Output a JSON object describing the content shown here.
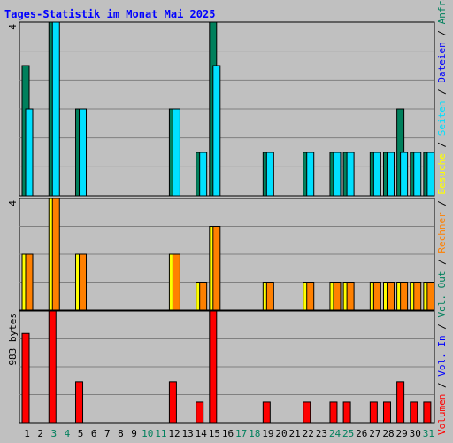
{
  "chart_data": {
    "type": "bar",
    "title": "Tages-Statistik im Monat Mai 2025",
    "categories": [
      "1",
      "2",
      "3",
      "4",
      "5",
      "6",
      "7",
      "8",
      "9",
      "10",
      "11",
      "12",
      "13",
      "14",
      "15",
      "16",
      "17",
      "18",
      "19",
      "20",
      "21",
      "22",
      "23",
      "24",
      "25",
      "26",
      "27",
      "28",
      "29",
      "30",
      "31"
    ],
    "weekend_days": [
      "3",
      "4",
      "10",
      "11",
      "17",
      "18",
      "24",
      "25",
      "31"
    ],
    "grid": true,
    "panels": [
      {
        "id": "top",
        "ymax_label": "4",
        "ylim": [
          0,
          4
        ],
        "series": [
          {
            "name": "Anfragen",
            "color": "#00805c",
            "values": [
              3,
              0,
              4,
              0,
              2,
              0,
              0,
              0,
              0,
              0,
              0,
              2,
              0,
              1,
              4,
              0,
              0,
              0,
              1,
              0,
              0,
              1,
              0,
              1,
              1,
              0,
              1,
              1,
              2,
              1,
              1
            ]
          },
          {
            "name": "Dateien",
            "color": "#0000ff",
            "values": [
              null,
              null,
              null,
              null,
              null,
              null,
              null,
              null,
              null,
              null,
              null,
              null,
              null,
              null,
              null,
              null,
              null,
              null,
              null,
              null,
              null,
              null,
              null,
              null,
              null,
              null,
              null,
              null,
              null,
              null,
              null
            ]
          },
          {
            "name": "Seiten",
            "color": "#00e0ff",
            "values": [
              2,
              0,
              4,
              0,
              2,
              0,
              0,
              0,
              0,
              0,
              0,
              2,
              0,
              1,
              3,
              0,
              0,
              0,
              1,
              0,
              0,
              1,
              0,
              1,
              1,
              0,
              1,
              1,
              1,
              1,
              1
            ]
          }
        ]
      },
      {
        "id": "middle",
        "ymax_label": "4",
        "ylim": [
          0,
          4
        ],
        "series": [
          {
            "name": "Besuche",
            "color": "#ffff00",
            "values": [
              2,
              0,
              4,
              0,
              2,
              0,
              0,
              0,
              0,
              0,
              0,
              2,
              0,
              1,
              3,
              0,
              0,
              0,
              1,
              0,
              0,
              1,
              0,
              1,
              1,
              0,
              1,
              1,
              1,
              1,
              1
            ]
          },
          {
            "name": "Rechner",
            "color": "#ff8000",
            "values": [
              2,
              0,
              4,
              0,
              2,
              0,
              0,
              0,
              0,
              0,
              0,
              2,
              0,
              1,
              3,
              0,
              0,
              0,
              1,
              0,
              0,
              1,
              0,
              1,
              1,
              0,
              1,
              1,
              1,
              1,
              1
            ]
          }
        ]
      },
      {
        "id": "bottom",
        "ymax_label": "983 bytes",
        "ylim": [
          0,
          983
        ],
        "series": [
          {
            "name": "Vol. Out",
            "color": "#ffa0a0",
            "values": [
              null,
              null,
              null,
              null,
              null,
              null,
              null,
              null,
              null,
              null,
              null,
              null,
              null,
              null,
              null,
              null,
              null,
              null,
              null,
              null,
              null,
              null,
              null,
              null,
              null,
              null,
              null,
              null,
              null,
              null,
              null
            ]
          },
          {
            "name": "Vol. In",
            "color": "#ff8080",
            "values": [
              null,
              null,
              null,
              null,
              null,
              null,
              null,
              null,
              null,
              null,
              null,
              null,
              null,
              null,
              null,
              null,
              null,
              null,
              null,
              null,
              null,
              null,
              null,
              null,
              null,
              null,
              null,
              null,
              null,
              null,
              null
            ]
          },
          {
            "name": "Volumen",
            "color": "#ff0000",
            "values": [
              786,
              0,
              983,
              0,
              360,
              0,
              0,
              0,
              0,
              0,
              0,
              360,
              0,
              180,
              983,
              0,
              0,
              0,
              180,
              0,
              0,
              180,
              0,
              180,
              180,
              0,
              180,
              180,
              360,
              180,
              180
            ]
          }
        ]
      }
    ],
    "legend_right": [
      {
        "text": "Volumen",
        "color": "#ff0000"
      },
      {
        "text": " / ",
        "color": "#000000"
      },
      {
        "text": "Vol. In",
        "color": "#0000ff"
      },
      {
        "text": " / ",
        "color": "#000000"
      },
      {
        "text": "Vol. Out",
        "color": "#00805c"
      },
      {
        "text": " / ",
        "color": "#000000"
      },
      {
        "text": "Rechner",
        "color": "#ff8000"
      },
      {
        "text": " / ",
        "color": "#000000"
      },
      {
        "text": "Besuche",
        "color": "#ffff00"
      },
      {
        "text": " / ",
        "color": "#000000"
      },
      {
        "text": "Seiten",
        "color": "#00e0ff"
      },
      {
        "text": " / ",
        "color": "#000000"
      },
      {
        "text": "Dateien",
        "color": "#0000ff"
      },
      {
        "text": " / ",
        "color": "#000000"
      },
      {
        "text": "Anfragen",
        "color": "#00805c"
      }
    ],
    "colors": {
      "background": "#c0c0c0",
      "title": "#0000ff",
      "weekday_label": "#000000",
      "weekend_label": "#00805c",
      "gridline": "#808080",
      "bar_outline": "#000000"
    }
  }
}
